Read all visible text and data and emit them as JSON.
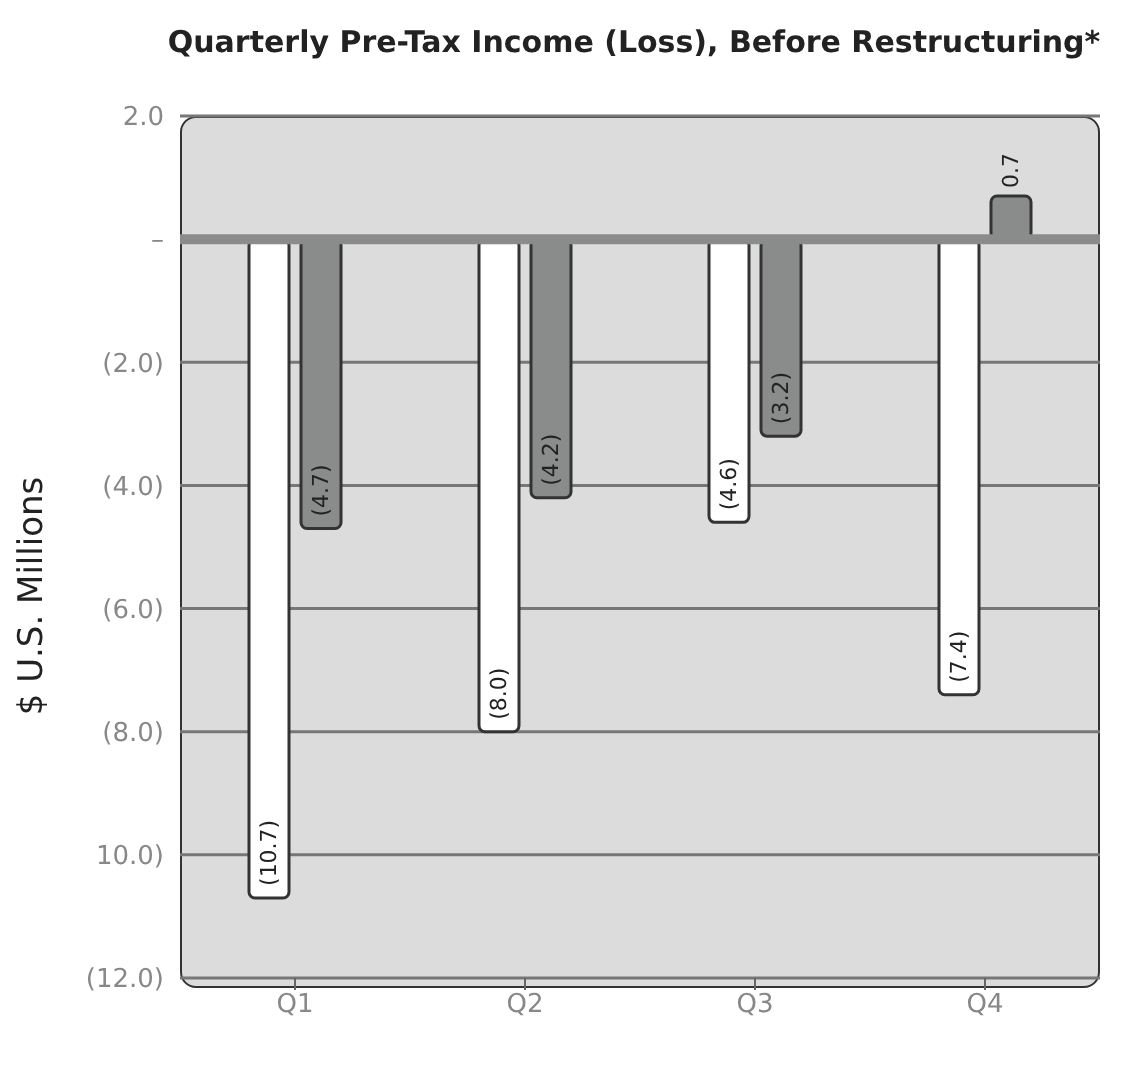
{
  "chart_data": {
    "type": "bar",
    "title": "Quarterly Pre-Tax Income (Loss), Before Restructuring*",
    "ylabel": "$ U.S. Millions",
    "categories": [
      "Q1",
      "Q2",
      "Q3",
      "Q4"
    ],
    "series": [
      {
        "color": "#ffffff",
        "values": [
          -10.7,
          -8.0,
          -4.6,
          -7.4
        ],
        "value_labels": [
          "(10.7)",
          "(8.0)",
          "(4.6)",
          "(7.4)"
        ]
      },
      {
        "color": "#8a8c8c",
        "values": [
          -4.7,
          -4.2,
          -3.2,
          0.7
        ],
        "value_labels": [
          "(4.7)",
          "(4.2)",
          "(3.2)",
          "0.7"
        ]
      }
    ],
    "ylim": [
      -12,
      2
    ],
    "yticks": [
      {
        "value": 2,
        "label": "2.0"
      },
      {
        "value": 0,
        "label": "–"
      },
      {
        "value": -2,
        "label": "(2.0)"
      },
      {
        "value": -4,
        "label": "(4.0)"
      },
      {
        "value": -6,
        "label": "(6.0)"
      },
      {
        "value": -8,
        "label": "(8.0)"
      },
      {
        "value": -10,
        "label": "10.0)"
      },
      {
        "value": -12,
        "label": "(12.0)"
      }
    ],
    "ref_lines": [
      {
        "axis": "y",
        "value": 0,
        "color": "#8a8c8c"
      }
    ],
    "grid": "y",
    "legend": false
  }
}
